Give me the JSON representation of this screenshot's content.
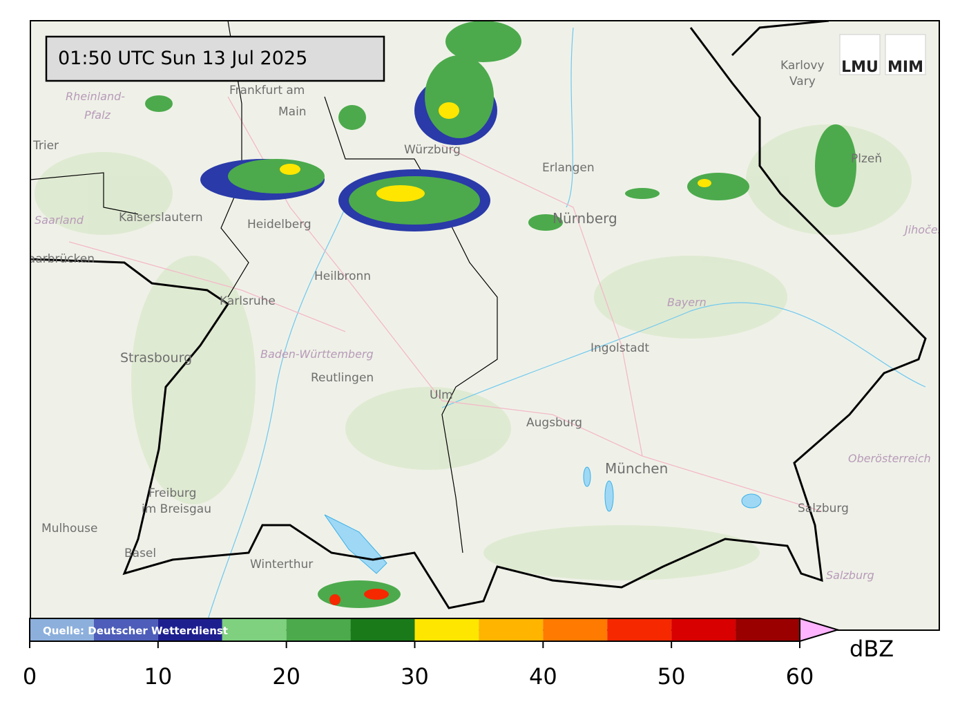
{
  "timestamp": "01:50 UTC  Sun 13 Jul 2025",
  "logos": [
    "LMU",
    "MIM"
  ],
  "source": "Quelle: Deutscher Wetterdienst",
  "places": {
    "frankfurt": [
      "Frankfurt am",
      "Main"
    ],
    "rheinland_pfalz": [
      "Rheinland-",
      "Pfalz"
    ],
    "trier": "Trier",
    "saarland": "Saarland",
    "kaiserslautern": "Kaiserslautern",
    "heidelberg": "Heidelberg",
    "saarbruecken": "Saarbrücken",
    "heilbronn": "Heilbronn",
    "karlsruhe": "Karlsruhe",
    "strasbourg": "Strasbourg",
    "baden_wuerttemberg": "Baden-Württemberg",
    "reutlingen": "Reutlingen",
    "ulm": "Ulm",
    "freiburg": [
      "Freiburg",
      "im Breisgau"
    ],
    "mulhouse": "Mulhouse",
    "basel": "Basel",
    "winterthur": "Winterthur",
    "wuerzburg": "Würzburg",
    "erlangen": "Erlangen",
    "nuernberg": "Nürnberg",
    "ingolstadt": "Ingolstadt",
    "bayern": "Bayern",
    "augsburg": "Augsburg",
    "muenchen": "München",
    "oberoesterreich": "Oberösterreich",
    "salzburg_city": "Salzburg",
    "salzburg_region": "Salzburg",
    "karlovy_vary": [
      "Karlovy",
      "Vary"
    ],
    "plzen": "Plzeň",
    "jihocesky": "Jihočeský"
  },
  "colorbar": {
    "unit": "dBZ",
    "levels": [
      0,
      5,
      10,
      15,
      20,
      25,
      30,
      35,
      40,
      45,
      50,
      55,
      60
    ],
    "colors": [
      "#8cafdc",
      "#4d5db9",
      "#1e1f8f",
      "#7fd07f",
      "#4caa4c",
      "#1a7a1a",
      "#ffe600",
      "#ffb400",
      "#ff7a00",
      "#f52800",
      "#d80000",
      "#9a0000"
    ],
    "extend_color": "#ffb4ff",
    "range": [
      0,
      60
    ],
    "ticks": [
      0,
      10,
      20,
      30,
      40,
      50,
      60
    ]
  }
}
